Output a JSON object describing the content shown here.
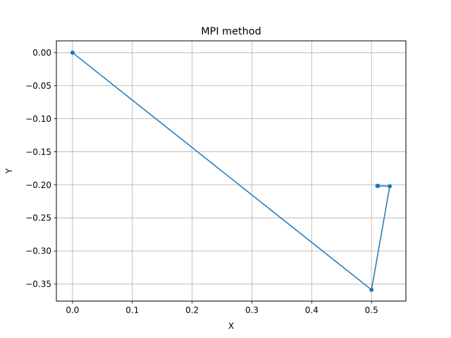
{
  "chart_data": {
    "type": "line",
    "title": "MPI method",
    "xlabel": "X",
    "ylabel": "Y",
    "xlim": [
      -0.027,
      0.5575
    ],
    "ylim": [
      -0.3759,
      0.0179
    ],
    "x_ticks": [
      0.0,
      0.1,
      0.2,
      0.3,
      0.4,
      0.5
    ],
    "x_tick_labels": [
      "0.0",
      "0.1",
      "0.2",
      "0.3",
      "0.4",
      "0.5"
    ],
    "y_ticks": [
      0.0,
      -0.05,
      -0.1,
      -0.15,
      -0.2,
      -0.25,
      -0.3,
      -0.35
    ],
    "y_tick_labels": [
      "0.00",
      "−0.05",
      "−0.10",
      "−0.15",
      "−0.20",
      "−0.25",
      "−0.30",
      "−0.35"
    ],
    "grid": true,
    "legend": "none",
    "series": [
      {
        "color": "#1f77b4",
        "marker": "circle",
        "x": [
          0.0,
          0.5,
          0.5305,
          0.5098,
          0.5108,
          0.5105
        ],
        "y": [
          0.0,
          -0.3588,
          -0.2021,
          -0.2015,
          -0.2016,
          -0.2016
        ]
      }
    ]
  }
}
